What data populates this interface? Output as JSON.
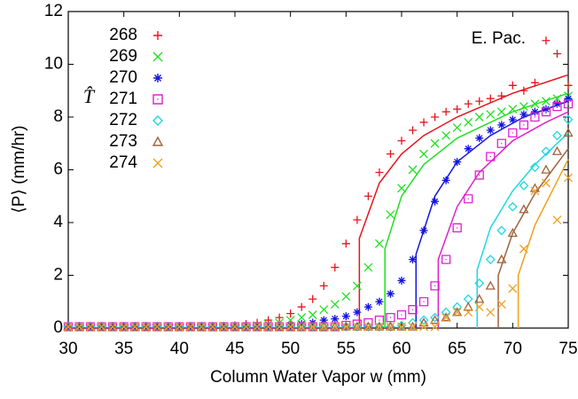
{
  "chart_data": {
    "type": "scatter",
    "xlabel": "Column Water Vapor w (mm)",
    "ylabel": "⟨P⟩ (mm/hr)",
    "annotation": "E. Pac.",
    "legend_title": "T̂",
    "legend": "upper left",
    "xlim": [
      30,
      75
    ],
    "ylim": [
      0,
      12
    ],
    "xticks": [
      30,
      35,
      40,
      45,
      50,
      55,
      60,
      65,
      70,
      75
    ],
    "yticks": [
      0,
      2,
      4,
      6,
      8,
      10,
      12
    ],
    "x": [
      30,
      31,
      32,
      33,
      34,
      35,
      36,
      37,
      38,
      39,
      40,
      41,
      42,
      43,
      44,
      45,
      46,
      47,
      48,
      49,
      50,
      51,
      52,
      53,
      54,
      55,
      56,
      57,
      58,
      59,
      60,
      61,
      62,
      63,
      64,
      65,
      66,
      67,
      68,
      69,
      70,
      71,
      72,
      73,
      74,
      75
    ],
    "series": [
      {
        "name": "268",
        "color": "#e8141c",
        "marker": "plus",
        "values": [
          0.05,
          0.05,
          0.05,
          0.05,
          0.05,
          0.05,
          0.05,
          0.05,
          0.05,
          0.05,
          0.05,
          0.05,
          0.05,
          0.05,
          0.05,
          0.1,
          0.15,
          0.2,
          0.3,
          0.4,
          0.55,
          0.8,
          1.1,
          1.6,
          2.3,
          3.2,
          4.1,
          5.0,
          5.9,
          6.6,
          7.1,
          7.5,
          7.8,
          8.0,
          8.2,
          8.3,
          8.5,
          8.6,
          8.7,
          8.8,
          9.2,
          9.0,
          9.3,
          10.9,
          10.4,
          9.2
        ],
        "fit": {
          "x": [
            56.2,
            56.2,
            58,
            60,
            62,
            65,
            70,
            75
          ],
          "y": [
            0,
            3.4,
            5.5,
            6.6,
            7.3,
            8.0,
            8.9,
            9.6
          ]
        }
      },
      {
        "name": "269",
        "color": "#22e022",
        "marker": "cross",
        "values": [
          0.05,
          0.05,
          0.05,
          0.05,
          0.05,
          0.05,
          0.05,
          0.05,
          0.05,
          0.05,
          0.05,
          0.05,
          0.05,
          0.05,
          0.05,
          0.05,
          0.05,
          0.1,
          0.15,
          0.2,
          0.3,
          0.4,
          0.5,
          0.7,
          0.9,
          1.2,
          1.6,
          2.3,
          3.2,
          4.3,
          5.3,
          6.0,
          6.6,
          7.0,
          7.3,
          7.6,
          7.8,
          8.0,
          8.1,
          8.2,
          8.3,
          8.4,
          8.5,
          8.6,
          8.7,
          8.8
        ],
        "fit": {
          "x": [
            58.5,
            58.5,
            60,
            62,
            65,
            70,
            75
          ],
          "y": [
            0,
            3,
            5.0,
            6.2,
            7.2,
            8.2,
            8.9
          ]
        }
      },
      {
        "name": "270",
        "color": "#1414e0",
        "marker": "star",
        "values": [
          0.05,
          0.05,
          0.05,
          0.05,
          0.05,
          0.05,
          0.05,
          0.05,
          0.05,
          0.05,
          0.05,
          0.05,
          0.05,
          0.05,
          0.05,
          0.05,
          0.05,
          0.05,
          0.05,
          0.05,
          0.1,
          0.15,
          0.2,
          0.3,
          0.35,
          0.45,
          0.6,
          0.8,
          1.0,
          1.3,
          1.8,
          2.6,
          3.7,
          4.8,
          5.6,
          6.3,
          6.8,
          7.2,
          7.5,
          7.7,
          7.9,
          8.1,
          8.2,
          8.3,
          8.5,
          8.7
        ],
        "fit": {
          "x": [
            61.3,
            61.3,
            63,
            65,
            68,
            71,
            75
          ],
          "y": [
            0,
            2.8,
            5.0,
            6.3,
            7.3,
            8.0,
            8.6
          ]
        }
      },
      {
        "name": "271",
        "color": "#e020d0",
        "marker": "square",
        "values": [
          0.05,
          0.05,
          0.05,
          0.05,
          0.05,
          0.05,
          0.05,
          0.05,
          0.05,
          0.05,
          0.05,
          0.05,
          0.05,
          0.05,
          0.05,
          0.05,
          0.05,
          0.05,
          0.05,
          0.05,
          0.05,
          0.05,
          0.05,
          0.05,
          0.05,
          0.1,
          0.15,
          0.2,
          0.3,
          0.4,
          0.5,
          0.7,
          1.0,
          1.6,
          2.6,
          3.8,
          4.9,
          5.8,
          6.5,
          7.0,
          7.4,
          7.7,
          8.0,
          8.2,
          8.4,
          8.5
        ],
        "fit": {
          "x": [
            63.3,
            63.3,
            65,
            67,
            70,
            73,
            75
          ],
          "y": [
            0,
            2.6,
            4.6,
            5.9,
            7.1,
            7.8,
            8.2
          ]
        }
      },
      {
        "name": "272",
        "color": "#20d8e0",
        "marker": "diamond",
        "values": [
          0.05,
          0.05,
          0.05,
          0.05,
          0.05,
          0.05,
          0.05,
          0.05,
          0.05,
          0.05,
          0.05,
          0.05,
          0.05,
          0.05,
          0.05,
          0.05,
          0.05,
          0.05,
          0.05,
          0.05,
          0.05,
          0.05,
          0.05,
          0.05,
          0.05,
          0.05,
          0.05,
          0.05,
          0.05,
          0.05,
          0.1,
          0.2,
          0.3,
          0.4,
          0.6,
          0.8,
          1.1,
          1.7,
          2.6,
          3.7,
          4.6,
          5.4,
          6.1,
          6.7,
          7.3,
          7.9
        ],
        "fit": {
          "x": [
            66.8,
            66.8,
            68,
            70,
            72,
            75
          ],
          "y": [
            0,
            2.2,
            3.8,
            5.2,
            6.2,
            7.4
          ]
        }
      },
      {
        "name": "273",
        "color": "#a0623a",
        "marker": "triangle",
        "values": [
          0.05,
          0.05,
          0.05,
          0.05,
          0.05,
          0.05,
          0.05,
          0.05,
          0.05,
          0.05,
          0.05,
          0.05,
          0.05,
          0.05,
          0.05,
          0.05,
          0.05,
          0.05,
          0.05,
          0.05,
          0.05,
          0.05,
          0.05,
          0.05,
          0.05,
          0.05,
          0.05,
          0.05,
          0.05,
          0.05,
          0.05,
          0.05,
          0.2,
          0.3,
          0.4,
          0.6,
          0.8,
          1.1,
          1.6,
          2.6,
          3.6,
          4.5,
          5.3,
          6.0,
          6.7,
          7.4
        ],
        "fit": {
          "x": [
            68.7,
            68.7,
            70,
            72,
            75
          ],
          "y": [
            0,
            2.0,
            3.6,
            5.1,
            6.8
          ]
        }
      },
      {
        "name": "274",
        "color": "#f0a020",
        "marker": "cross",
        "values": [
          0.05,
          0.05,
          0.05,
          0.05,
          0.05,
          0.05,
          0.05,
          0.05,
          0.05,
          0.05,
          0.05,
          0.05,
          0.05,
          0.05,
          0.05,
          0.05,
          0.05,
          0.05,
          0.05,
          0.05,
          0.05,
          0.05,
          0.05,
          0.05,
          0.05,
          0.05,
          0.05,
          0.05,
          0.05,
          0.05,
          0.05,
          0.05,
          0.05,
          0.05,
          0.4,
          0.6,
          0.6,
          0.8,
          0.6,
          0.9,
          1.5,
          3.0,
          5.2,
          5.5,
          4.1,
          5.7
        ],
        "fit": {
          "x": [
            70.5,
            70.5,
            72,
            75
          ],
          "y": [
            0,
            2.0,
            3.9,
            6.4
          ]
        }
      }
    ]
  }
}
